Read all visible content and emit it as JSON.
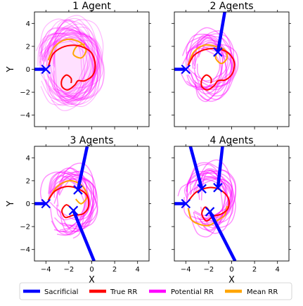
{
  "chart_data": {
    "type": "line",
    "legend": {
      "placement": "bottom",
      "entries": [
        {
          "label": "Sacrificial",
          "color": "#0000ff"
        },
        {
          "label": "True RR",
          "color": "#ff0000"
        },
        {
          "label": "Potential RR",
          "color": "#ff00ff"
        },
        {
          "label": "Mean RR",
          "color": "#ffa500"
        }
      ]
    },
    "shared_axes": {
      "xlabel": "X",
      "ylabel": "Y",
      "xlim": [
        -5,
        5
      ],
      "ylim": [
        -5,
        5
      ],
      "xticks": [
        -4,
        -2,
        0,
        2,
        4
      ],
      "yticks": [
        -4,
        -2,
        0,
        2,
        4
      ],
      "xtick_labels": [
        "−4",
        "−2",
        "0",
        "2",
        "4"
      ],
      "ytick_labels": [
        "−4",
        "−2",
        "0",
        "2",
        "4"
      ]
    },
    "panels": [
      {
        "title": "1 Agent",
        "agents": [
          [
            -4.0,
            0.0
          ]
        ],
        "sacrificial_paths": [
          [
            [
              -5.0,
              0.0
            ],
            [
              -4.0,
              0.0
            ]
          ]
        ],
        "true_rr": [
          [
            -3.8,
            0.2
          ],
          [
            -3.4,
            1.3
          ],
          [
            -2.6,
            1.9
          ],
          [
            -1.6,
            2.1
          ],
          [
            -0.7,
            1.9
          ],
          [
            0.0,
            1.4
          ],
          [
            0.3,
            0.4
          ],
          [
            0.1,
            -0.5
          ],
          [
            -0.6,
            -1.0
          ],
          [
            -1.2,
            -1.0
          ],
          [
            -1.5,
            -1.4
          ],
          [
            -2.1,
            -1.8
          ],
          [
            -2.6,
            -1.5
          ],
          [
            -2.6,
            -0.9
          ],
          [
            -2.2,
            -0.5
          ],
          [
            -1.8,
            -0.8
          ],
          [
            -1.8,
            -1.2
          ]
        ],
        "mean_rr": [
          [
            -3.8,
            0.8
          ],
          [
            -3.2,
            2.0
          ],
          [
            -2.2,
            2.6
          ],
          [
            -1.1,
            2.4
          ],
          [
            -0.5,
            1.7
          ],
          [
            -0.9,
            1.0
          ],
          [
            -1.6,
            1.3
          ],
          [
            -1.3,
            2.0
          ],
          [
            -0.6,
            2.2
          ]
        ]
      },
      {
        "title": "2 Agents",
        "agents": [
          [
            -4.0,
            0.0
          ],
          [
            -1.2,
            1.5
          ]
        ],
        "sacrificial_paths": [
          [
            [
              -5.0,
              0.0
            ],
            [
              -4.0,
              0.0
            ]
          ],
          [
            [
              -0.6,
              5.0
            ],
            [
              -1.2,
              1.5
            ]
          ]
        ],
        "true_rr": [
          [
            -3.8,
            0.3
          ],
          [
            -3.3,
            1.2
          ],
          [
            -2.4,
            1.7
          ],
          [
            -1.4,
            1.8
          ],
          [
            -0.4,
            1.5
          ],
          [
            0.2,
            0.7
          ],
          [
            0.1,
            -0.3
          ],
          [
            -0.5,
            -0.9
          ],
          [
            -1.2,
            -1.0
          ],
          [
            -1.5,
            -1.4
          ],
          [
            -2.1,
            -1.8
          ],
          [
            -2.6,
            -1.5
          ],
          [
            -2.6,
            -0.9
          ],
          [
            -2.2,
            -0.5
          ],
          [
            -1.8,
            -0.8
          ],
          [
            -1.8,
            -1.2
          ]
        ],
        "mean_rr": [
          [
            -3.8,
            0.4
          ],
          [
            -3.3,
            1.5
          ],
          [
            -2.4,
            2.1
          ],
          [
            -1.4,
            2.0
          ],
          [
            -0.6,
            1.7
          ],
          [
            -0.4,
            1.0
          ],
          [
            -0.9,
            0.5
          ],
          [
            -1.4,
            1.0
          ],
          [
            -1.2,
            1.6
          ]
        ]
      },
      {
        "title": "3 Agents",
        "agents": [
          [
            -4.0,
            0.0
          ],
          [
            -1.2,
            1.2
          ],
          [
            -1.6,
            -0.6
          ]
        ],
        "sacrificial_paths": [
          [
            [
              -5.0,
              0.0
            ],
            [
              -4.0,
              0.0
            ]
          ],
          [
            [
              -0.4,
              5.0
            ],
            [
              -1.2,
              1.2
            ]
          ],
          [
            [
              0.2,
              -5.0
            ],
            [
              -1.6,
              -0.6
            ]
          ]
        ],
        "true_rr": [
          [
            -3.8,
            0.3
          ],
          [
            -3.2,
            1.1
          ],
          [
            -2.2,
            1.5
          ],
          [
            -1.2,
            1.3
          ],
          [
            -0.4,
            0.7
          ],
          [
            -0.3,
            -0.3
          ],
          [
            -0.8,
            -0.9
          ],
          [
            -1.6,
            -1.0
          ],
          [
            -2.3,
            -1.2
          ],
          [
            -2.6,
            -0.6
          ],
          [
            -2.2,
            -0.1
          ],
          [
            -1.7,
            -0.5
          ]
        ],
        "mean_rr": [
          [
            -3.8,
            0.3
          ],
          [
            -3.0,
            1.5
          ],
          [
            -1.9,
            2.0
          ],
          [
            -0.9,
            1.6
          ],
          [
            -0.4,
            0.7
          ],
          [
            -0.9,
            0.0
          ],
          [
            -1.4,
            0.4
          ]
        ]
      },
      {
        "title": "4 Agents",
        "agents": [
          [
            -4.0,
            0.0
          ],
          [
            -2.6,
            1.3
          ],
          [
            -1.2,
            1.4
          ],
          [
            -1.9,
            -0.7
          ]
        ],
        "sacrificial_paths": [
          [
            [
              -5.0,
              0.0
            ],
            [
              -4.0,
              0.0
            ]
          ],
          [
            [
              -3.6,
              5.0
            ],
            [
              -2.6,
              1.3
            ]
          ],
          [
            [
              -0.8,
              5.0
            ],
            [
              -1.2,
              1.4
            ]
          ],
          [
            [
              0.3,
              -5.0
            ],
            [
              -1.9,
              -0.7
            ]
          ]
        ],
        "true_rr": [
          [
            -3.8,
            0.2
          ],
          [
            -3.1,
            1.0
          ],
          [
            -2.0,
            1.4
          ],
          [
            -1.0,
            1.2
          ],
          [
            -0.3,
            0.5
          ],
          [
            -0.3,
            -0.4
          ],
          [
            -0.9,
            -0.9
          ],
          [
            -1.6,
            -1.1
          ],
          [
            -2.2,
            -1.5
          ],
          [
            -2.6,
            -0.9
          ],
          [
            -2.3,
            -0.3
          ],
          [
            -1.9,
            -0.7
          ]
        ],
        "mean_rr": [
          [
            -3.8,
            -0.4
          ],
          [
            -3.5,
            -1.4
          ],
          [
            -2.8,
            -1.8
          ],
          [
            -2.0,
            -1.9
          ],
          [
            -1.3,
            -1.5
          ],
          [
            -0.6,
            -1.0
          ],
          [
            -0.4,
            -0.2
          ]
        ]
      }
    ]
  }
}
